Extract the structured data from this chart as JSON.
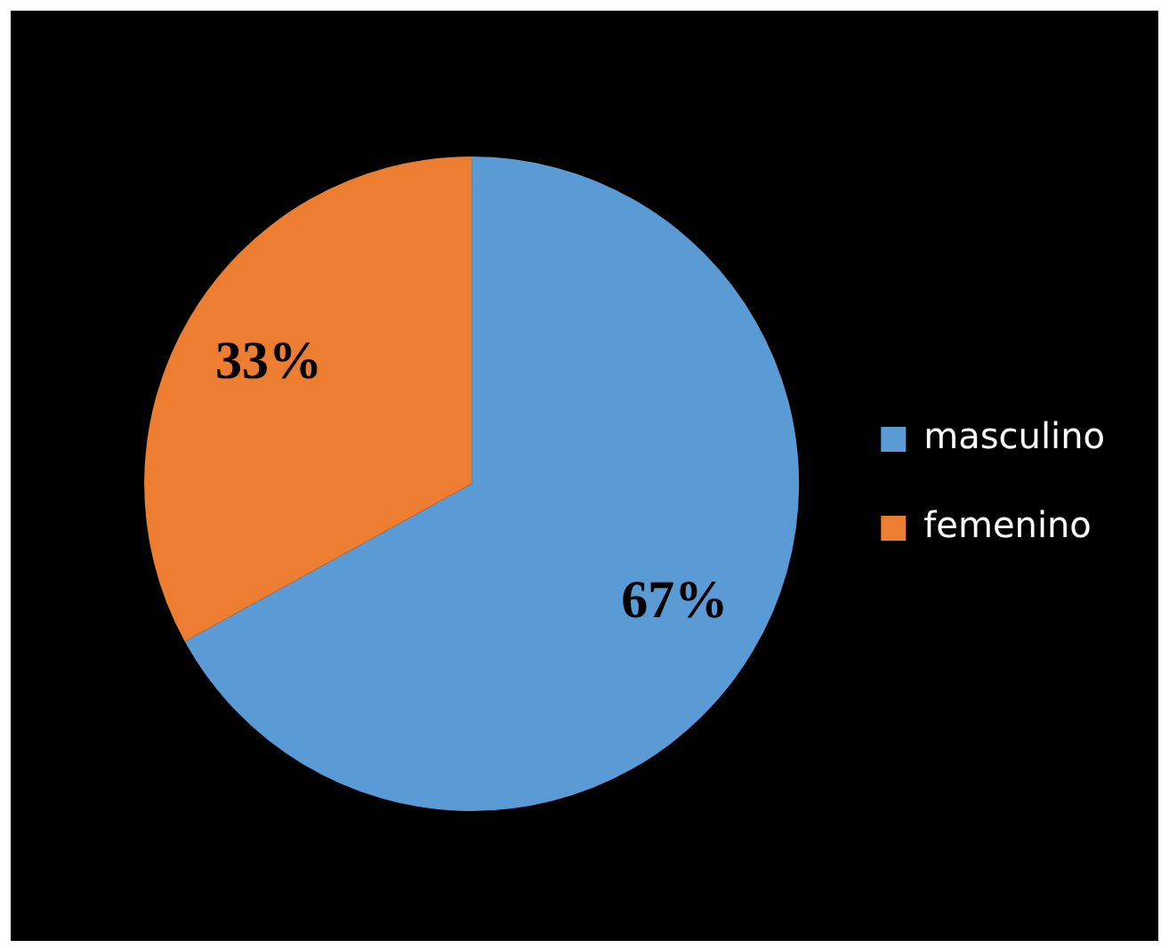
{
  "chart_data": {
    "type": "pie",
    "categories": [
      "masculino",
      "femenino"
    ],
    "values": [
      67,
      33
    ],
    "colors": [
      "#5b9bd5",
      "#ed7d31"
    ],
    "value_labels": [
      "67%",
      "33%"
    ],
    "legend": "right"
  }
}
